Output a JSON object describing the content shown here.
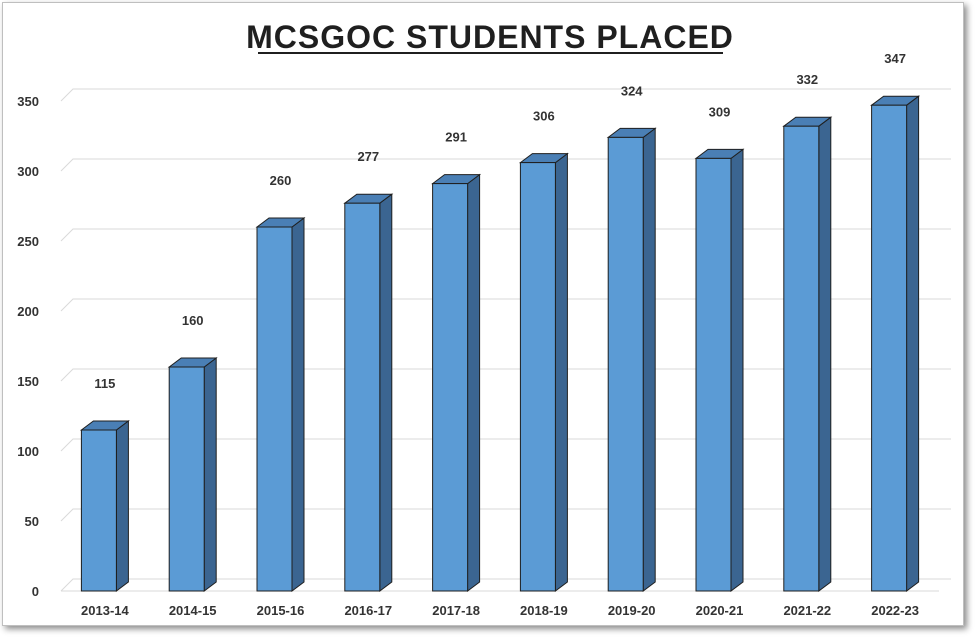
{
  "chart_data": {
    "type": "bar",
    "title": "MCSGOC STUDENTS PLACED",
    "categories": [
      "2013-14",
      "2014-15",
      "2015-16",
      "2016-17",
      "2017-18",
      "2018-19",
      "2019-20",
      "2020-21",
      "2021-22",
      "2022-23"
    ],
    "values": [
      115,
      160,
      260,
      277,
      291,
      306,
      324,
      309,
      332,
      347
    ],
    "ylim": [
      0,
      350
    ],
    "yticks": [
      0,
      50,
      100,
      150,
      200,
      250,
      300,
      350
    ],
    "grid": true,
    "legend": "none",
    "style": "3d-column"
  },
  "colors": {
    "bar_front": "#5b9bd5",
    "bar_side": "#3b6591",
    "bar_top": "#4a7fb5",
    "outline": "#1f1f1f"
  }
}
